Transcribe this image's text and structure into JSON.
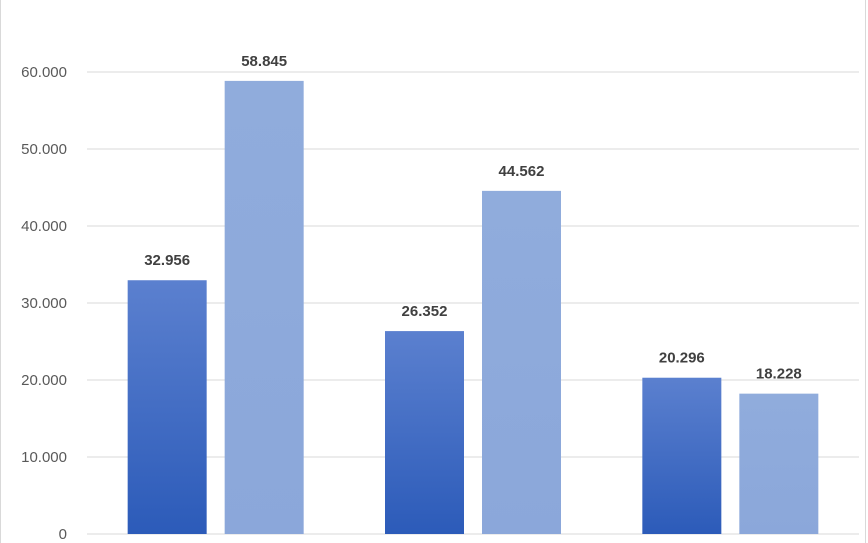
{
  "chart_data": {
    "type": "bar",
    "categories": [
      "",
      "",
      ""
    ],
    "series": [
      {
        "values": [
          32.956,
          26.352,
          20.296
        ],
        "color": "#3b65c4"
      },
      {
        "values": [
          58.845,
          44.562,
          18.228
        ],
        "color": "#8eaadb"
      }
    ],
    "data_labels": [
      [
        "32.956",
        "26.352",
        "20.296"
      ],
      [
        "58.845",
        "44.562",
        "18.228"
      ]
    ],
    "y_ticks": [
      0,
      10,
      20,
      30,
      40,
      50,
      60
    ],
    "y_tick_labels": [
      "0",
      "10.000",
      "20.000",
      "30.000",
      "40.000",
      "50.000",
      "60.000"
    ],
    "ylim": [
      0,
      60
    ],
    "grid": true,
    "legend": "none",
    "title": "",
    "xlabel": "",
    "ylabel": ""
  }
}
